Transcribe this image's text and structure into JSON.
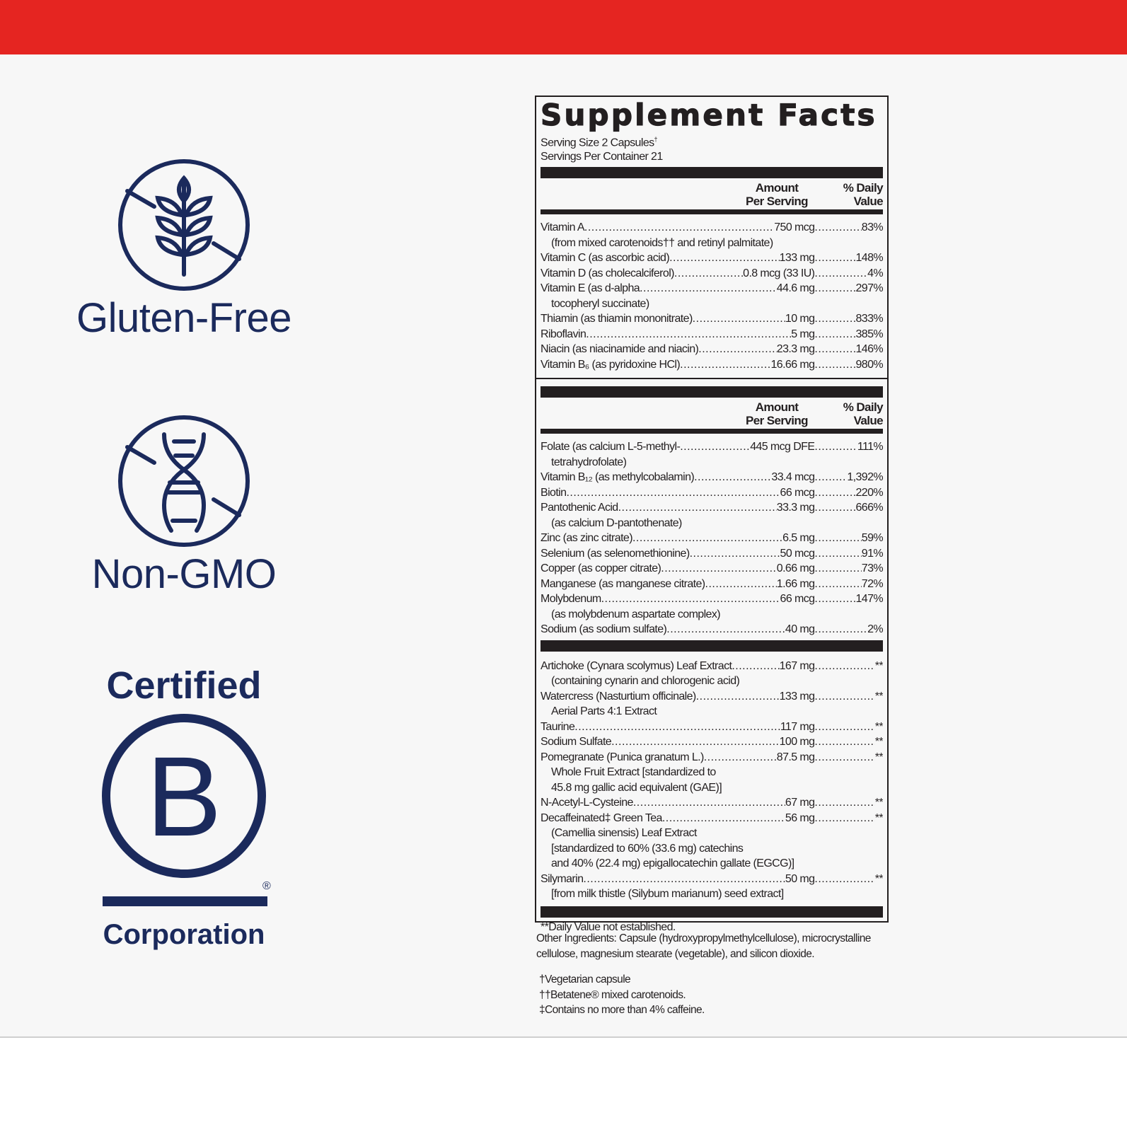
{
  "colors": {
    "top_bar": "#e52521",
    "brand_navy": "#1b2a5c",
    "background": "#f7f7f7"
  },
  "badges": {
    "gluten_free": {
      "icon": "wheat-crossed-icon",
      "label": "Gluten-Free"
    },
    "non_gmo": {
      "icon": "dna-crossed-icon",
      "label": "Non-GMO"
    },
    "bcorp": {
      "icon": "b-corp-logo-icon",
      "top": "Certified",
      "bottom": "Corporation",
      "registered": "®"
    }
  },
  "facts": {
    "title": "Supplement Facts",
    "serving_size": "Serving Size 2 Capsules",
    "serving_size_mark": "†",
    "servings_per_container": "Servings Per Container 21",
    "col_amount": [
      "Amount",
      "Per Serving"
    ],
    "col_dv": [
      "% Daily",
      "Value"
    ],
    "section1": [
      {
        "name": "Vitamin A",
        "amount": "750 mcg",
        "dv": "83%",
        "sub": [
          "(from mixed carotenoids†† and retinyl palmitate)"
        ]
      },
      {
        "name": "Vitamin C (as ascorbic acid)",
        "amount": "133 mg",
        "dv": "148%"
      },
      {
        "name": "Vitamin D (as cholecalciferol)",
        "amount": "0.8 mcg (33 IU)",
        "dv": "4%"
      },
      {
        "name": "Vitamin E (as d-alpha",
        "amount": "44.6 mg",
        "dv": "297%",
        "sub": [
          "tocopheryl succinate)"
        ]
      },
      {
        "name": "Thiamin (as thiamin mononitrate)",
        "amount": "10 mg",
        "dv": "833%"
      },
      {
        "name": "Riboflavin",
        "amount": "5 mg",
        "dv": "385%"
      },
      {
        "name": "Niacin (as niacinamide and niacin)",
        "amount": "23.3 mg",
        "dv": "146%"
      },
      {
        "name": "Vitamin B₆ (as pyridoxine HCl)",
        "amount": "16.66 mg",
        "dv": "980%"
      }
    ],
    "section2": [
      {
        "name": "Folate (as calcium L-5-methyl-",
        "amount": "445 mcg DFE",
        "dv": "111%",
        "sub": [
          "tetrahydrofolate)"
        ]
      },
      {
        "name": "Vitamin B₁₂ (as methylcobalamin)",
        "amount": "33.4 mcg",
        "dv": "1,392%"
      },
      {
        "name": "Biotin",
        "amount": "66 mcg",
        "dv": "220%"
      },
      {
        "name": "Pantothenic Acid",
        "amount": "33.3 mg",
        "dv": "666%",
        "sub": [
          "(as calcium D-pantothenate)"
        ]
      },
      {
        "name": "Zinc (as zinc citrate)",
        "amount": "6.5 mg",
        "dv": "59%"
      },
      {
        "name": "Selenium (as selenomethionine)",
        "amount": "50 mcg",
        "dv": "91%"
      },
      {
        "name": "Copper (as copper citrate)",
        "amount": "0.66 mg",
        "dv": "73%"
      },
      {
        "name": "Manganese (as manganese citrate)",
        "amount": "1.66 mg",
        "dv": "72%"
      },
      {
        "name": "Molybdenum",
        "amount": "66 mcg",
        "dv": "147%",
        "sub": [
          "(as molybdenum aspartate complex)"
        ]
      },
      {
        "name": "Sodium (as sodium sulfate)",
        "amount": "40 mg",
        "dv": "2%"
      }
    ],
    "section3": [
      {
        "name": "Artichoke (Cynara scolymus) Leaf Extract",
        "amount": "167 mg",
        "dv": "**",
        "sub": [
          "(containing cynarin and chlorogenic acid)"
        ]
      },
      {
        "name": "Watercress (Nasturtium officinale)",
        "amount": "133 mg",
        "dv": "**",
        "sub": [
          "Aerial Parts 4:1 Extract"
        ]
      },
      {
        "name": "Taurine",
        "amount": "117 mg",
        "dv": "**"
      },
      {
        "name": "Sodium Sulfate",
        "amount": "100 mg",
        "dv": "**"
      },
      {
        "name": "Pomegranate (Punica granatum L.)",
        "amount": "87.5 mg",
        "dv": "**",
        "sub": [
          "Whole Fruit Extract [standardized to",
          "45.8 mg gallic acid equivalent (GAE)]"
        ]
      },
      {
        "name": "N-Acetyl-L-Cysteine",
        "amount": "67 mg",
        "dv": "**"
      },
      {
        "name": "Decaffeinated‡ Green Tea",
        "amount": "56 mg",
        "dv": "**",
        "sub": [
          "(Camellia sinensis) Leaf Extract",
          "[standardized to 60% (33.6 mg) catechins",
          "and 40% (22.4 mg) epigallocatechin gallate (EGCG)]"
        ]
      },
      {
        "name": "Silymarin",
        "amount": "50 mg",
        "dv": "**",
        "sub": [
          "[from milk thistle (Silybum marianum) seed extract]"
        ]
      }
    ],
    "footnote": "**Daily Value not established."
  },
  "other_ingredients": "Other Ingredients: Capsule (hydroxypropylmethylcellulose), microcrystalline cellulose, magnesium stearate (vegetable), and silicon dioxide.",
  "notes": [
    "†Vegetarian capsule",
    "††Betatene® mixed carotenoids.",
    "‡Contains no more than 4% caffeine."
  ]
}
